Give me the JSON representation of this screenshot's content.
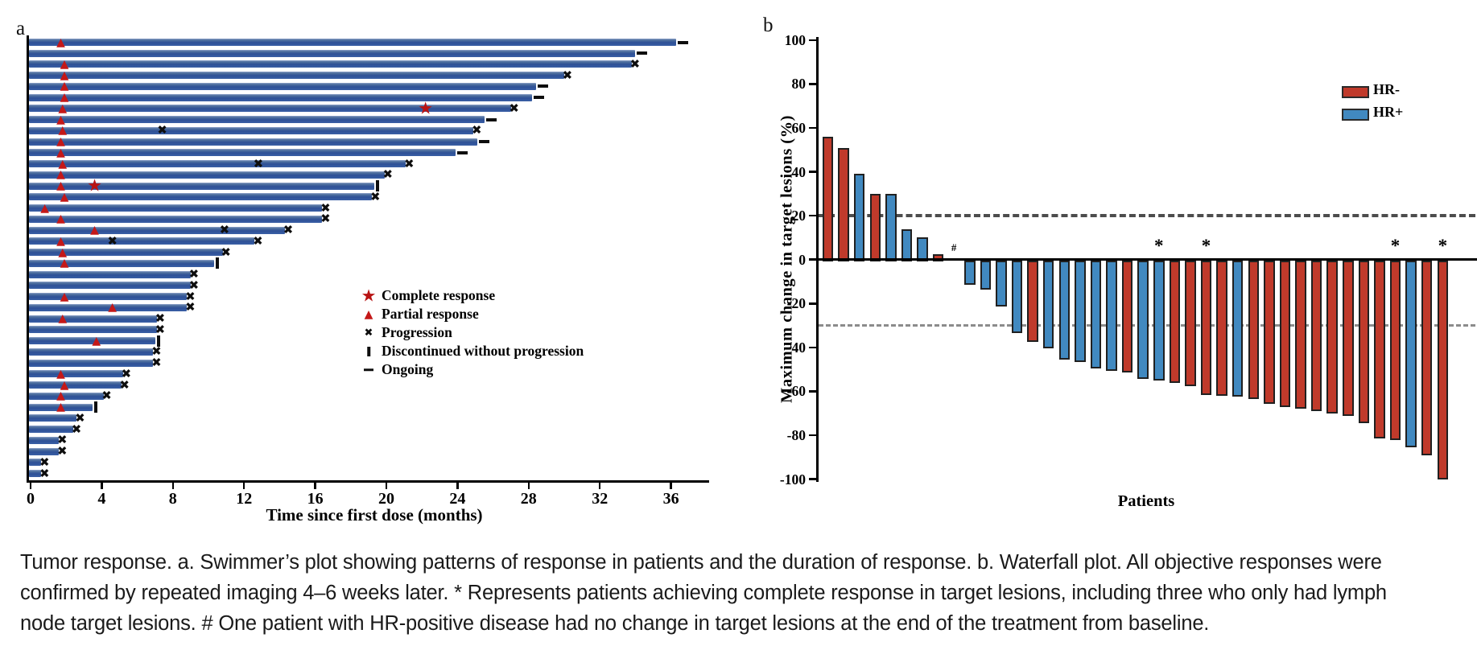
{
  "chart_data": [
    {
      "type": "bar",
      "variant": "swimmer",
      "panel_label": "a",
      "title": "",
      "xlabel": "Time since first dose (months)",
      "x_ticks": [
        0,
        4,
        8,
        12,
        16,
        20,
        24,
        28,
        32,
        36
      ],
      "xlim": [
        0,
        38
      ],
      "bar_color": "#35599f",
      "marker_colors": {
        "complete_response": "#b81414",
        "partial_response": "#c41818",
        "progression": "#0e0e0e",
        "discontinued": "#0e0e0e",
        "ongoing": "#0e0e0e"
      },
      "legend": [
        {
          "icon": "star-icon",
          "label": "Complete response"
        },
        {
          "icon": "triangle-icon",
          "label": "Partial response"
        },
        {
          "icon": "x-icon",
          "label": "Progression"
        },
        {
          "icon": "tick-icon",
          "label": "Discontinued without progression"
        },
        {
          "icon": "dash-icon",
          "label": "Ongoing"
        }
      ],
      "bars": [
        {
          "len": 36.3,
          "end": "ongoing",
          "pr": 1.7
        },
        {
          "len": 34.0,
          "end": "ongoing"
        },
        {
          "len": 33.8,
          "end": "progression",
          "pr": 1.9
        },
        {
          "len": 30.0,
          "end": "progression",
          "pr": 1.9
        },
        {
          "len": 28.4,
          "end": "ongoing",
          "pr": 1.9
        },
        {
          "len": 28.2,
          "end": "ongoing",
          "pr": 1.9
        },
        {
          "len": 27.0,
          "end": "progression",
          "pr": 1.8,
          "cr": 22.2
        },
        {
          "len": 25.5,
          "end": "ongoing",
          "pr": 1.7
        },
        {
          "len": 24.9,
          "end": "progression",
          "pr": 1.8,
          "mid_x": 7.4
        },
        {
          "len": 25.1,
          "end": "ongoing",
          "pr": 1.7
        },
        {
          "len": 23.9,
          "end": "ongoing",
          "pr": 1.7
        },
        {
          "len": 21.1,
          "end": "progression",
          "pr": 1.8,
          "mid_x": 12.8
        },
        {
          "len": 19.9,
          "end": "progression",
          "pr": 1.7
        },
        {
          "len": 19.3,
          "end": "discontinued",
          "pr": 1.7,
          "cr": 3.6
        },
        {
          "len": 19.2,
          "end": "progression",
          "pr": 1.9
        },
        {
          "len": 16.4,
          "end": "progression",
          "pr": 0.8
        },
        {
          "len": 16.4,
          "end": "progression",
          "pr": 1.7
        },
        {
          "len": 14.3,
          "end": "progression",
          "pr": 3.6,
          "mid_x": 10.9
        },
        {
          "len": 12.6,
          "end": "progression",
          "pr": 1.7,
          "mid_x": 4.6
        },
        {
          "len": 10.8,
          "end": "progression",
          "pr": 1.8
        },
        {
          "len": 10.3,
          "end": "discontinued",
          "pr": 1.9
        },
        {
          "len": 9.0,
          "end": "progression"
        },
        {
          "len": 9.0,
          "end": "progression"
        },
        {
          "len": 8.8,
          "end": "progression",
          "pr": 1.9
        },
        {
          "len": 8.8,
          "end": "progression",
          "pr": 4.6
        },
        {
          "len": 7.1,
          "end": "progression",
          "pr": 1.8
        },
        {
          "len": 7.1,
          "end": "progression"
        },
        {
          "len": 7.0,
          "end": "discontinued",
          "pr": 3.7
        },
        {
          "len": 6.9,
          "end": "progression"
        },
        {
          "len": 6.9,
          "end": "progression"
        },
        {
          "len": 5.2,
          "end": "progression",
          "pr": 1.7
        },
        {
          "len": 5.1,
          "end": "progression",
          "pr": 1.9
        },
        {
          "len": 4.1,
          "end": "progression",
          "pr": 1.7
        },
        {
          "len": 3.5,
          "end": "discontinued",
          "pr": 1.7
        },
        {
          "len": 2.6,
          "end": "progression"
        },
        {
          "len": 2.4,
          "end": "progression"
        },
        {
          "len": 1.6,
          "end": "progression"
        },
        {
          "len": 1.6,
          "end": "progression"
        },
        {
          "len": 0.6,
          "end": "progression"
        },
        {
          "len": 0.6,
          "end": "progression"
        }
      ]
    },
    {
      "type": "bar",
      "variant": "waterfall",
      "panel_label": "b",
      "title": "",
      "ylabel": "Maximum change in target lesions (%)",
      "xlabel": "Patients",
      "ylim": [
        -100,
        100
      ],
      "y_ticks": [
        100,
        80,
        60,
        40,
        20,
        0,
        -20,
        -40,
        -60,
        -80,
        -100
      ],
      "reference_lines": [
        20,
        -30
      ],
      "legend": [
        {
          "label": "HR-",
          "color": "#c03a2b"
        },
        {
          "label": "HR+",
          "color": "#4189c0"
        }
      ],
      "patients": [
        {
          "value": 56,
          "group": "HR-"
        },
        {
          "value": 51,
          "group": "HR-"
        },
        {
          "value": 39,
          "group": "HR+"
        },
        {
          "value": 30,
          "group": "HR-"
        },
        {
          "value": 30,
          "group": "HR+"
        },
        {
          "value": 14,
          "group": "HR+"
        },
        {
          "value": 10,
          "group": "HR+"
        },
        {
          "value": 2.5,
          "group": "HR-"
        },
        {
          "value": 0,
          "group": "HR+",
          "mark": "#"
        },
        {
          "value": -11,
          "group": "HR+"
        },
        {
          "value": -13,
          "group": "HR+"
        },
        {
          "value": -21,
          "group": "HR+"
        },
        {
          "value": -33,
          "group": "HR+"
        },
        {
          "value": -37,
          "group": "HR-"
        },
        {
          "value": -40,
          "group": "HR+"
        },
        {
          "value": -45,
          "group": "HR+"
        },
        {
          "value": -46,
          "group": "HR+"
        },
        {
          "value": -49,
          "group": "HR+"
        },
        {
          "value": -50,
          "group": "HR+"
        },
        {
          "value": -51,
          "group": "HR-"
        },
        {
          "value": -54,
          "group": "HR+"
        },
        {
          "value": -54.5,
          "group": "HR+",
          "mark": "*"
        },
        {
          "value": -55.5,
          "group": "HR-"
        },
        {
          "value": -57,
          "group": "HR-"
        },
        {
          "value": -61,
          "group": "HR-",
          "mark": "*"
        },
        {
          "value": -61.5,
          "group": "HR-"
        },
        {
          "value": -62,
          "group": "HR+"
        },
        {
          "value": -63,
          "group": "HR-"
        },
        {
          "value": -65,
          "group": "HR-"
        },
        {
          "value": -66.5,
          "group": "HR-"
        },
        {
          "value": -67.5,
          "group": "HR-"
        },
        {
          "value": -68.5,
          "group": "HR-"
        },
        {
          "value": -69.5,
          "group": "HR-"
        },
        {
          "value": -70.5,
          "group": "HR-"
        },
        {
          "value": -74,
          "group": "HR-"
        },
        {
          "value": -81,
          "group": "HR-"
        },
        {
          "value": -81.5,
          "group": "HR-",
          "mark": "*"
        },
        {
          "value": -85,
          "group": "HR+"
        },
        {
          "value": -88.5,
          "group": "HR-"
        },
        {
          "value": -99.5,
          "group": "HR-",
          "mark": "*"
        }
      ]
    }
  ],
  "caption": {
    "lines": [
      "Tumor response. a. Swimmer’s plot showing patterns of response in patients and the duration of response. b. Waterfall plot. All objective responses were",
      "confirmed by repeated imaging 4–6 weeks later. * Represents patients achieving complete response in target lesions, including three who only had lymph",
      "node target lesions. # One patient with HR-positive disease had no change in target lesions at the end of the treatment from baseline."
    ]
  }
}
